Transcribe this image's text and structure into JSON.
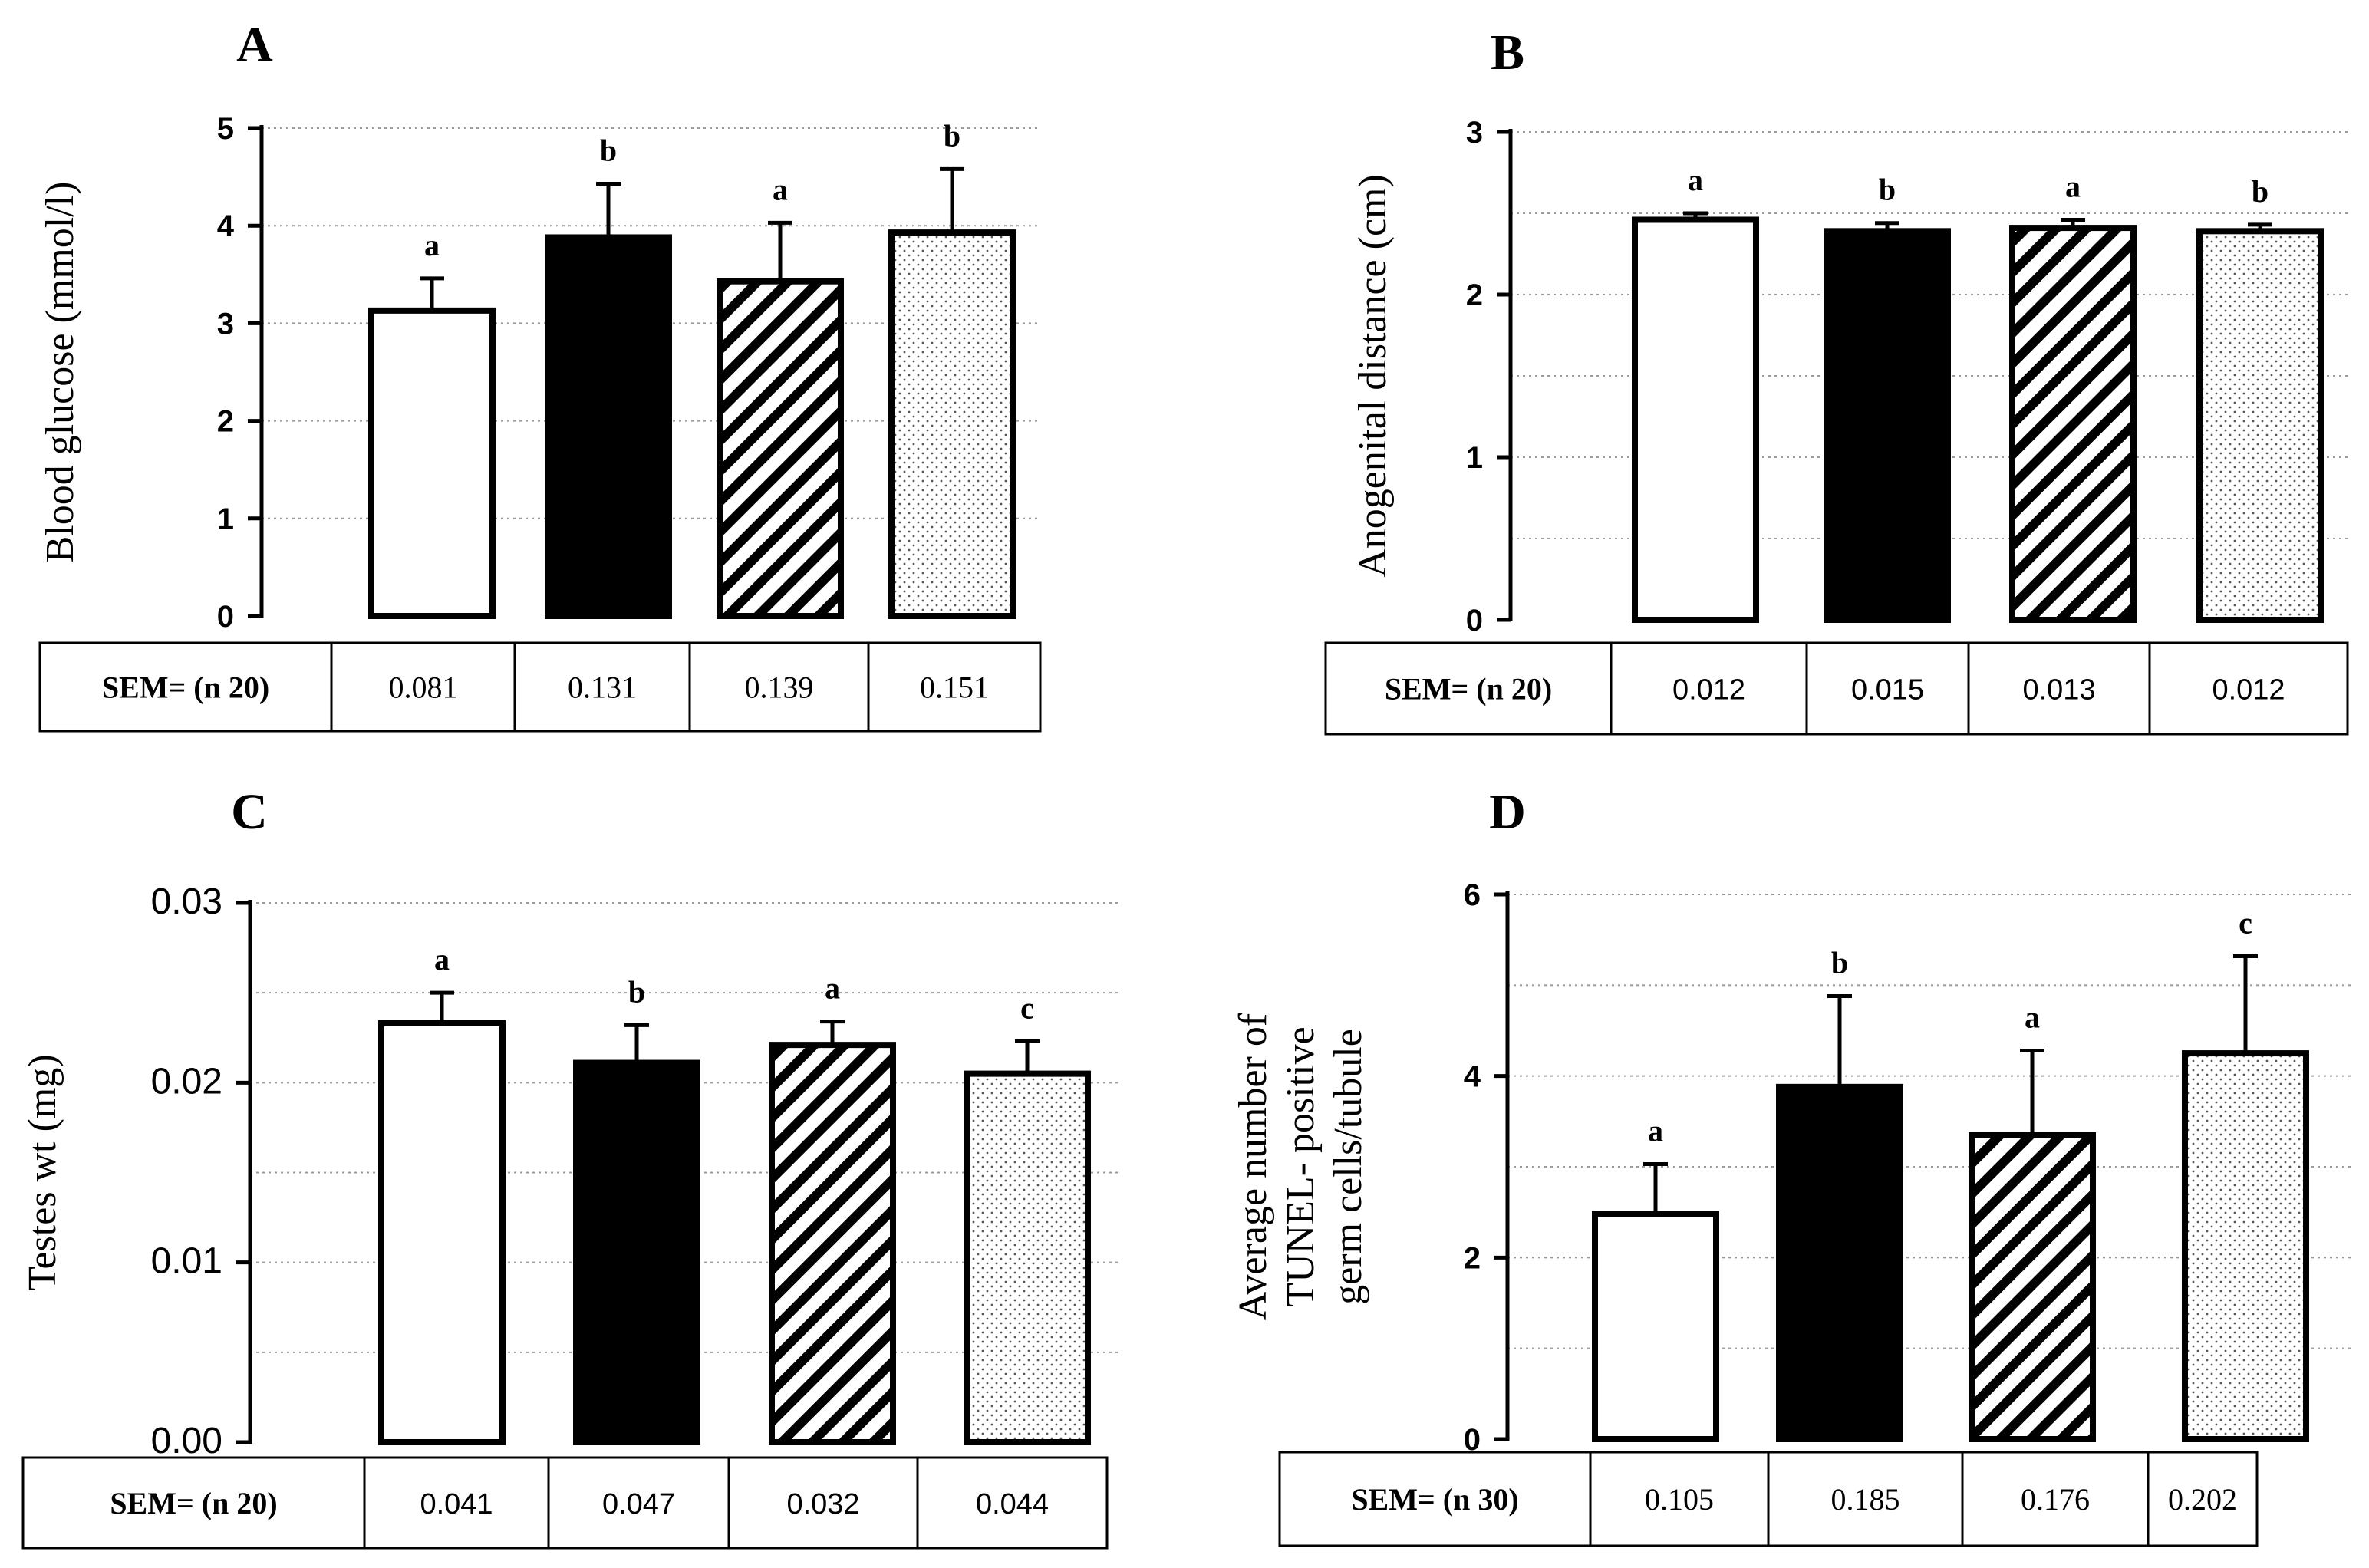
{
  "chart_data": [
    {
      "panel": "A",
      "type": "bar",
      "ylabel": "Blood glucose (mmol/l)",
      "ylim": [
        0,
        5
      ],
      "yticks": [
        "0",
        "1",
        "2",
        "3",
        "4",
        "5"
      ],
      "grid": true,
      "values": [
        3.13,
        3.88,
        3.43,
        3.93
      ],
      "errors": [
        0.33,
        0.55,
        0.6,
        0.65
      ],
      "fills": [
        "white",
        "black",
        "stripes",
        "dots"
      ],
      "significance": [
        "a",
        "b",
        "a",
        "b"
      ],
      "sem_label": "SEM= (n 20)",
      "sem_values": [
        "0.081",
        "0.131",
        "0.139",
        "0.151"
      ]
    },
    {
      "panel": "B",
      "type": "bar",
      "ylabel": "Anogenital distance (cm)",
      "ylim": [
        0,
        3
      ],
      "yticks": [
        "0",
        "1",
        "2",
        "3"
      ],
      "grid": true,
      "values": [
        2.46,
        2.39,
        2.41,
        2.39
      ],
      "errors": [
        0.04,
        0.05,
        0.05,
        0.04
      ],
      "fills": [
        "white",
        "black",
        "stripes",
        "dots"
      ],
      "significance": [
        "a",
        "b",
        "a",
        "b"
      ],
      "sem_label": "SEM= (n 20)",
      "sem_values": [
        "0.012",
        "0.015",
        "0.013",
        "0.012"
      ]
    },
    {
      "panel": "C",
      "type": "bar",
      "ylabel": "Testes wt (mg)",
      "ylim": [
        0,
        0.03
      ],
      "yticks": [
        "0.00",
        "0.01",
        "0.02",
        "0.03"
      ],
      "grid": true,
      "values": [
        0.0233,
        0.0211,
        0.0221,
        0.0205
      ],
      "errors": [
        0.0017,
        0.0021,
        0.0013,
        0.0018
      ],
      "fills": [
        "white",
        "black",
        "stripes",
        "dots"
      ],
      "significance": [
        "a",
        "b",
        "a",
        "c"
      ],
      "sem_label": "SEM= (n 20)",
      "sem_values": [
        "0.041",
        "0.047",
        "0.032",
        "0.044"
      ]
    },
    {
      "panel": "D",
      "type": "bar",
      "ylabel": [
        "Average number of",
        "TUNEL- positive",
        "germ cells/tubule"
      ],
      "ylim": [
        0,
        6
      ],
      "yticks": [
        "0",
        "2",
        "4",
        "6"
      ],
      "grid": true,
      "values": [
        2.48,
        3.88,
        3.35,
        4.25
      ],
      "errors": [
        0.55,
        1.0,
        0.93,
        1.07
      ],
      "fills": [
        "white",
        "black",
        "stripes",
        "dots"
      ],
      "significance": [
        "a",
        "b",
        "a",
        "c"
      ],
      "sem_label": "SEM= (n 30)",
      "sem_values": [
        "0.105",
        "0.185",
        "0.176",
        "0.202"
      ]
    }
  ]
}
